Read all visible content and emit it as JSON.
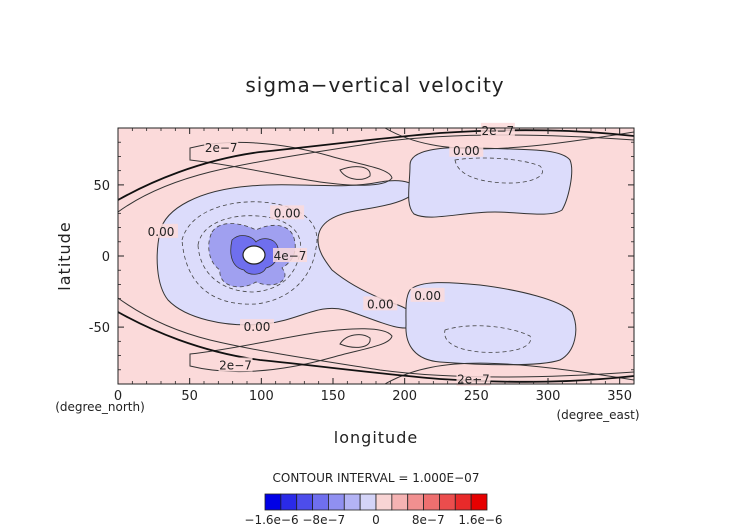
{
  "chart_data": {
    "type": "heatmap",
    "title": "sigma−vertical velocity",
    "xlabel": "longitude",
    "ylabel": "latitude",
    "x_unit": "(degree_east)",
    "y_unit": "(degree_north)",
    "xlim": [
      0,
      360
    ],
    "ylim": [
      -90,
      90
    ],
    "x_ticks": [
      0,
      50,
      100,
      150,
      200,
      250,
      300,
      350
    ],
    "y_ticks": [
      -50,
      0,
      50
    ],
    "contour_interval_text": "CONTOUR INTERVAL = 1.000E−07",
    "contour_labels": [
      {
        "text": "2e−7",
        "lon": 72,
        "lat": 76
      },
      {
        "text": "2e−7",
        "lon": 265,
        "lat": 88
      },
      {
        "text": "0.00",
        "lon": 243,
        "lat": 74
      },
      {
        "text": "0.00",
        "lon": 118,
        "lat": 30
      },
      {
        "text": "0.00",
        "lon": 30,
        "lat": 17
      },
      {
        "text": "4e−7",
        "lon": 120,
        "lat": 0
      },
      {
        "text": "0.00",
        "lon": 216,
        "lat": -28
      },
      {
        "text": "0.00",
        "lon": 183,
        "lat": -34
      },
      {
        "text": "0.00",
        "lon": 97,
        "lat": -50
      },
      {
        "text": "2e−7",
        "lon": 82,
        "lat": -77
      },
      {
        "text": "2e−7",
        "lon": 248,
        "lat": -87
      }
    ],
    "colorbar": {
      "colors": [
        "#0000e6",
        "#2a2ae8",
        "#4d4deb",
        "#6f6fee",
        "#9090f1",
        "#b3b3f5",
        "#d4d4f8",
        "#f8d4d4",
        "#f5b3b3",
        "#f19090",
        "#ee6f6f",
        "#eb4d4d",
        "#e82a2a",
        "#e60000"
      ],
      "tick_labels": [
        "−1.6e−6",
        "−8e−7",
        "0",
        "8e−7",
        "1.6e−6"
      ],
      "tick_values": [
        -1.6e-06,
        -8e-07,
        0,
        8e-07,
        1.6e-06
      ],
      "range": [
        -1.7e-06,
        1.7e-06
      ]
    },
    "regions": {
      "positive_fill": "#fbdada",
      "negative_fill": "#dcdcfb",
      "strong_negative_fill": "#7a7aec"
    }
  }
}
